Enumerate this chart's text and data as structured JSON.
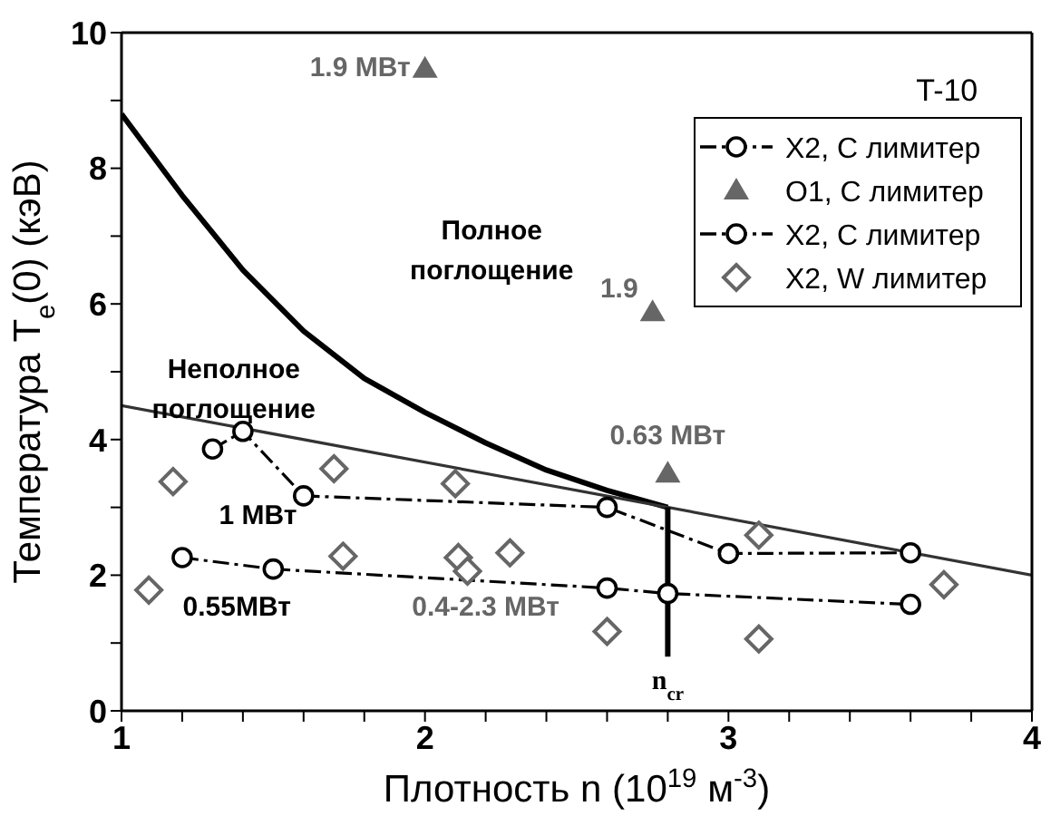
{
  "chart_data": {
    "type": "scatter",
    "xlabel": "Плотность n (10$^{19}$ м$^{-3}$)",
    "ylabel": "Температура T$_{e}$(0) (кэВ)",
    "xlim": [
      1,
      4
    ],
    "xticks": [
      1,
      {
        "value": 1.2,
        "label": null
      },
      {
        "value": 1.4,
        "label": null
      },
      {
        "value": 1.6,
        "label": null
      },
      {
        "value": 1.8,
        "label": null
      },
      2,
      {
        "value": 2.2,
        "label": null
      },
      {
        "value": 2.4,
        "label": null
      },
      {
        "value": 2.6,
        "label": null
      },
      {
        "value": 2.8,
        "label": null
      },
      3,
      {
        "value": 3.2,
        "label": null
      },
      {
        "value": 3.4,
        "label": null
      },
      {
        "value": 3.6,
        "label": null
      },
      {
        "value": 3.8,
        "label": null
      },
      4
    ],
    "ylim": [
      0,
      10
    ],
    "yticks": [
      0,
      {
        "value": 1,
        "label": null
      },
      2,
      {
        "value": 3,
        "label": null
      },
      4,
      {
        "value": 5,
        "label": null
      },
      6,
      {
        "value": 7,
        "label": null
      },
      8,
      {
        "value": 9,
        "label": null
      },
      10
    ],
    "legend": "top right",
    "series": [
      {
        "name": "X2, C лимитер",
        "type": "line",
        "marker": "circle",
        "line_style": "dashed",
        "color": "#000000",
        "x": [
          1.3,
          1.4,
          1.6,
          2.6,
          3.0,
          3.6
        ],
        "values": [
          3.86,
          4.12,
          3.17,
          3.0,
          2.32,
          2.33
        ]
      },
      {
        "name": "O1, C лимитер",
        "marker": "triangle",
        "color": "#666666",
        "x": [
          2.0,
          2.75,
          2.8
        ],
        "values": [
          9.47,
          5.88,
          3.5
        ]
      },
      {
        "name": "X2, C лимитер",
        "type": "line",
        "marker": "circle",
        "line_style": "dashed",
        "color": "#000000",
        "x": [
          1.2,
          1.5,
          2.6,
          2.8,
          3.6
        ],
        "values": [
          2.26,
          2.09,
          1.81,
          1.73,
          1.57
        ]
      },
      {
        "name": "X2, W лимитер",
        "marker": "diamond",
        "color": "#666666",
        "x": [
          1.09,
          1.17,
          1.7,
          1.73,
          2.1,
          2.11,
          2.14,
          2.28,
          2.6,
          3.1,
          3.1,
          3.71
        ],
        "values": [
          1.78,
          3.38,
          3.57,
          2.28,
          3.35,
          2.26,
          2.06,
          2.33,
          1.17,
          2.59,
          1.06,
          1.86
        ]
      },
      {
        "type": "line",
        "marker": "none",
        "line_style": "solid",
        "color": "#000000",
        "x": [
          1.0,
          1.2,
          1.4,
          1.6,
          1.8,
          2.0,
          2.2,
          2.4,
          2.6,
          2.8
        ],
        "values": [
          8.8,
          7.6,
          6.5,
          5.6,
          4.9,
          4.4,
          3.95,
          3.55,
          3.25,
          3.0
        ]
      },
      {
        "type": "line",
        "marker": "none",
        "line_style": "solid",
        "color": "#333333",
        "x": [
          1.0,
          4.0
        ],
        "values": [
          4.5,
          2.0
        ]
      },
      {
        "type": "line",
        "marker": "none",
        "line_style": "solid",
        "color": "#000000",
        "x": [
          2.8,
          2.8
        ],
        "values": [
          0.8,
          3.0
        ]
      }
    ],
    "annotations": [
      {
        "text": "1.9 МВт",
        "x": 2.0,
        "y": 9.47
      },
      {
        "text": "1.9",
        "x": 2.75,
        "y": 5.88
      },
      {
        "text": "0.63 МВт",
        "x": 2.8,
        "y": 3.5
      },
      "T-10",
      "Полное\nпоглощение",
      "Неполное\nпоглощение",
      "1 МВт",
      "0.55МВт",
      "0.4-2.3 МВт",
      "n$_{cr}$"
    ]
  }
}
